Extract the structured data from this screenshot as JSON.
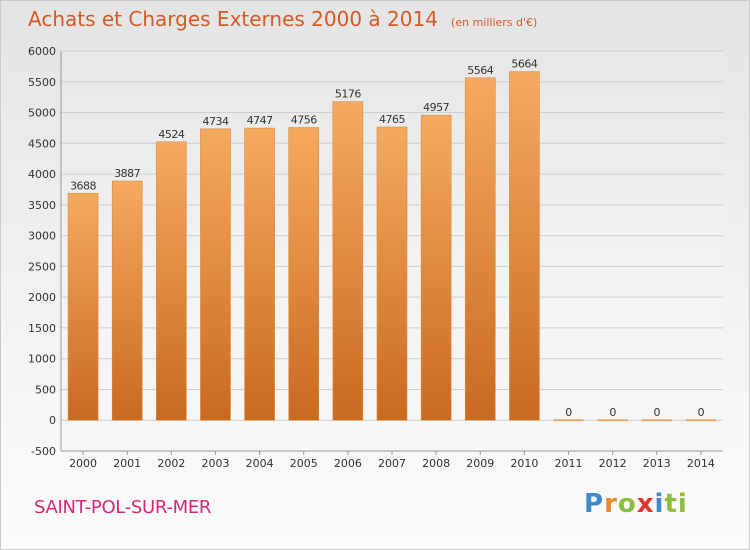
{
  "header": {
    "title": "Achats et Charges Externes 2000 à 2014",
    "unit": "(en milliers d'€)"
  },
  "footer": {
    "city": "SAINT-POL-SUR-MER",
    "logo": [
      "P",
      "r",
      "o",
      "x",
      "i",
      "ti"
    ]
  },
  "colors": {
    "bar_top": "#f5aa60",
    "bar_bottom": "#c96a1f",
    "title": "#d45a25",
    "city": "#d4287a",
    "grid": "#cfcfcf"
  },
  "chart_data": {
    "type": "bar",
    "title": "Achats et Charges Externes 2000 à 2014",
    "categories": [
      "2000",
      "2001",
      "2002",
      "2003",
      "2004",
      "2005",
      "2006",
      "2007",
      "2008",
      "2009",
      "2010",
      "2011",
      "2012",
      "2013",
      "2014"
    ],
    "values": [
      3688,
      3887,
      4524,
      4734,
      4747,
      4756,
      5176,
      4765,
      4957,
      5564,
      5664,
      0,
      0,
      0,
      0
    ],
    "ylim": [
      -500,
      6000
    ],
    "yticks": [
      -500,
      0,
      500,
      1000,
      1500,
      2000,
      2500,
      3000,
      3500,
      4000,
      4500,
      5000,
      5500,
      6000
    ],
    "grid": true,
    "data_labels": true
  }
}
